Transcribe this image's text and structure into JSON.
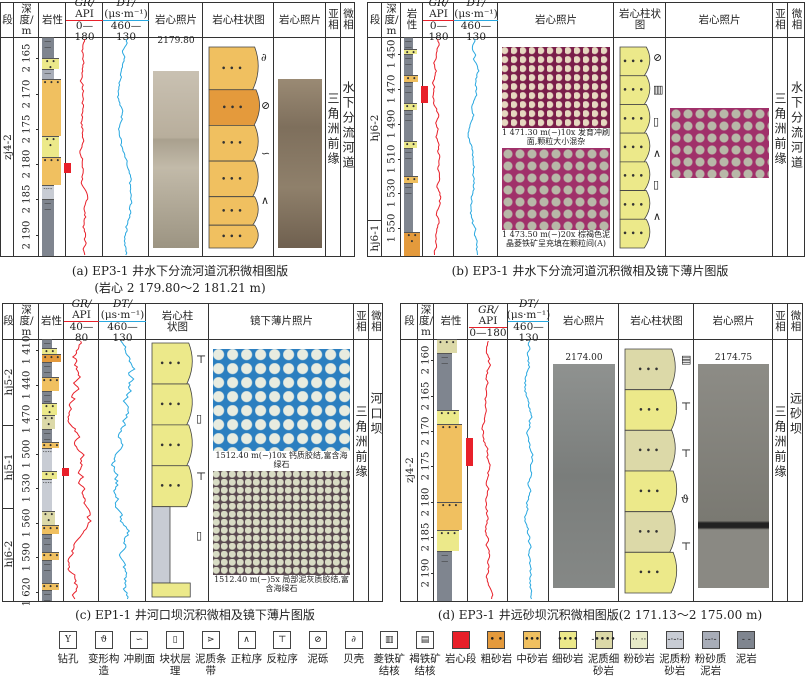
{
  "legend": [
    {
      "label": "钻孔",
      "icon": "boring-icon",
      "glyph": "Y",
      "fill": "#ffffff"
    },
    {
      "label": "变形构造",
      "icon": "deformation-structure-icon",
      "glyph": "ϑ",
      "fill": "#ffffff"
    },
    {
      "label": "冲刷面",
      "icon": "scour-surface-icon",
      "glyph": "∽",
      "fill": "#ffffff"
    },
    {
      "label": "块状层理",
      "icon": "massive-bedding-icon",
      "glyph": "▯",
      "fill": "#ffffff"
    },
    {
      "label": "泥质条带",
      "icon": "mud-band-icon",
      "glyph": "⋗",
      "fill": "#ffffff"
    },
    {
      "label": "正粒序",
      "icon": "normal-grading-icon",
      "glyph": "∧",
      "fill": "#ffffff"
    },
    {
      "label": "反粒序",
      "icon": "reverse-grading-icon",
      "glyph": "⊤",
      "fill": "#ffffff"
    },
    {
      "label": "泥砾",
      "icon": "mud-gravel-icon",
      "glyph": "⊘",
      "fill": "#ffffff"
    },
    {
      "label": "贝壳",
      "icon": "shell-icon",
      "glyph": "∂",
      "fill": "#ffffff"
    },
    {
      "label": "菱铁矿结核",
      "icon": "siderite-nodule-icon",
      "glyph": "▥",
      "fill": "#ffffff"
    },
    {
      "label": "褐铁矿结核",
      "icon": "limonite-nodule-icon",
      "glyph": "▤",
      "fill": "#ffffff"
    },
    {
      "label": "岩心段",
      "icon": "core-section-swatch",
      "glyph": "",
      "fill": "#e8202a"
    },
    {
      "label": "粗砂岩",
      "icon": "coarse-sandstone-swatch",
      "glyph": "• •",
      "fill": "#e49a3c"
    },
    {
      "label": "中砂岩",
      "icon": "medium-sandstone-swatch",
      "glyph": "•••",
      "fill": "#f0c060"
    },
    {
      "label": "细砂岩",
      "icon": "fine-sandstone-swatch",
      "glyph": "••••",
      "fill": "#ece98a"
    },
    {
      "label": "泥质细砂岩",
      "icon": "muddy-fine-sandstone-swatch",
      "glyph": "-••••",
      "fill": "#dcd9a8"
    },
    {
      "label": "粉砂岩",
      "icon": "siltstone-swatch",
      "glyph": "·· ··",
      "fill": "#e8ebc8"
    },
    {
      "label": "泥质粉砂岩",
      "icon": "muddy-siltstone-swatch",
      "glyph": "-·-·-",
      "fill": "#c8ccd4"
    },
    {
      "label": "粉砂质泥岩",
      "icon": "silty-mudstone-swatch",
      "glyph": "--·-",
      "fill": "#a8adb8"
    },
    {
      "label": "泥岩",
      "icon": "mudstone-swatch",
      "glyph": "- -",
      "fill": "#7f858f"
    }
  ],
  "colors": {
    "gr_curve": "#e8202a",
    "dt_curve": "#29a8e0",
    "core_section": "#e8202a"
  },
  "panels": {
    "a": {
      "caption": "(a) EP3-1 井水下分流河道沉积微相图版",
      "caption2": "(岩心 2 179.80～2 181.21 m)",
      "headers": [
        [
          "段"
        ],
        [
          "深",
          "度/",
          "m"
        ],
        [
          "岩性"
        ],
        [
          "GR/",
          "API",
          "0—180"
        ],
        [
          "DT/",
          "(μs·m⁻¹)",
          "460—130"
        ],
        [
          "岩心照片"
        ],
        [
          "岩心柱状图"
        ],
        [
          "岩心照片"
        ],
        [
          "亚",
          "相"
        ],
        [
          "微",
          "相"
        ]
      ],
      "depth_range": [
        2162,
        2193
      ],
      "depth_ticks": [
        "2 165",
        "2 170",
        "2 175",
        "2 180",
        "2 185",
        "2 190"
      ],
      "segments": [
        {
          "label": "zj4-2",
          "top": 2162,
          "bottom": 2193
        }
      ],
      "lithology": [
        [
          2162,
          2165,
          "mud"
        ],
        [
          2165,
          2166.5,
          "fine"
        ],
        [
          2166.5,
          2168,
          "silty_mud"
        ],
        [
          2168,
          2176,
          "medium"
        ],
        [
          2176,
          2179,
          "fine"
        ],
        [
          2179,
          2183,
          "medium"
        ],
        [
          2183,
          2185,
          "muddy_silt"
        ],
        [
          2185,
          2193,
          "mud"
        ]
      ],
      "core_section": [
        2179.8,
        2181.2
      ],
      "column_beds": [
        [
          2179.8,
          2180.1,
          "medium"
        ],
        [
          2180.1,
          2180.35,
          "coarse"
        ],
        [
          2180.35,
          2180.6,
          "medium"
        ],
        [
          2180.6,
          2180.85,
          "medium"
        ],
        [
          2180.85,
          2181.05,
          "medium"
        ],
        [
          2181.05,
          2181.21,
          "medium"
        ]
      ],
      "photo_labels": [
        "2179.80"
      ],
      "subfacies": "三角洲前缘",
      "microfacies": "水下分流河道"
    },
    "b": {
      "caption": "(b) EP3-1 井水下分流河道沉积微相及镜下薄片图版",
      "headers": [
        [
          "段"
        ],
        [
          "深",
          "度/",
          "m"
        ],
        [
          "岩",
          "性"
        ],
        [
          "GR/",
          "API",
          "0—180"
        ],
        [
          "DT/",
          "(μs·m⁻¹)",
          "460—130"
        ],
        [
          "岩心照片"
        ],
        [
          "岩心柱状",
          "图"
        ],
        [
          "岩心照片"
        ],
        [
          "亚",
          "相"
        ],
        [
          "微",
          "相"
        ]
      ],
      "depth_range": [
        1440,
        1566
      ],
      "depth_ticks": [
        "1 450",
        "1 470",
        "1 490",
        "1 510",
        "1 530",
        "1 550"
      ],
      "segments": [
        {
          "label": "hj6-2",
          "top": 1440,
          "bottom": 1545
        },
        {
          "label": "hj6-1",
          "top": 1545,
          "bottom": 1566
        }
      ],
      "lithology": [
        [
          1440,
          1447,
          "mud"
        ],
        [
          1447,
          1450,
          "fine"
        ],
        [
          1450,
          1462,
          "mud"
        ],
        [
          1462,
          1466,
          "medium"
        ],
        [
          1466,
          1478,
          "mud"
        ],
        [
          1478,
          1482,
          "fine"
        ],
        [
          1482,
          1500,
          "mud"
        ],
        [
          1500,
          1504,
          "fine"
        ],
        [
          1504,
          1520,
          "mud"
        ],
        [
          1520,
          1524,
          "medium"
        ],
        [
          1524,
          1552,
          "mud"
        ],
        [
          1552,
          1566,
          "coarse"
        ]
      ],
      "core_section": [
        1468,
        1478
      ],
      "photo_captions": [
        "1 471.30 m(−)10x  发育冲刷面,颗粒大小混杂",
        "1 473.50 m(−)20x  棕褐色泥晶菱铁矿呈充填在颗粒间(A)"
      ],
      "subfacies": "三角洲前缘",
      "microfacies": "水下分流河道"
    },
    "c": {
      "caption": "(c) EP1-1 井河口坝沉积微相及镜下薄片图版",
      "headers": [
        [
          "段"
        ],
        [
          "深",
          "度/",
          "m"
        ],
        [
          "岩性"
        ],
        [
          "GR/",
          "API",
          "40—80"
        ],
        [
          "DT/",
          "(μs·m⁻¹)",
          "460—130"
        ],
        [
          "岩心柱",
          "状图"
        ],
        [
          "镜下薄片照片"
        ],
        [
          "亚",
          "相"
        ],
        [
          "微",
          "相"
        ]
      ],
      "depth_range": [
        1400,
        1628
      ],
      "depth_ticks": [
        "1 410",
        "1 440",
        "1 470",
        "1 500",
        "1 530",
        "1 560",
        "1 590",
        "1 620"
      ],
      "segments": [
        {
          "label": "hj5-2",
          "top": 1400,
          "bottom": 1475
        },
        {
          "label": "hj5-1",
          "top": 1475,
          "bottom": 1547
        },
        {
          "label": "hj6-2",
          "top": 1547,
          "bottom": 1628
        }
      ],
      "lithology": [
        [
          1400,
          1408,
          "mud"
        ],
        [
          1408,
          1413,
          "fine"
        ],
        [
          1413,
          1420,
          "coarse"
        ],
        [
          1420,
          1433,
          "mud"
        ],
        [
          1433,
          1445,
          "medium"
        ],
        [
          1445,
          1456,
          "mud"
        ],
        [
          1456,
          1466,
          "fine"
        ],
        [
          1466,
          1478,
          "muddy_fine"
        ],
        [
          1478,
          1490,
          "mud"
        ],
        [
          1490,
          1495,
          "medium"
        ],
        [
          1495,
          1515,
          "muddy_silt"
        ],
        [
          1515,
          1522,
          "fine"
        ],
        [
          1522,
          1550,
          "muddy_silt"
        ],
        [
          1550,
          1562,
          "muddy_fine"
        ],
        [
          1562,
          1570,
          "medium"
        ],
        [
          1570,
          1585,
          "mud"
        ],
        [
          1585,
          1592,
          "medium"
        ],
        [
          1592,
          1612,
          "mud"
        ],
        [
          1612,
          1618,
          "medium"
        ],
        [
          1618,
          1628,
          "mud"
        ]
      ],
      "core_section": [
        1512,
        1518
      ],
      "photo_captions": [
        "1512.40 m(−)10x  钙质胶结,富含海绿石",
        "1512.40 m(−)5x  局部泥灰质胶结,富含海绿石"
      ],
      "subfacies": "三角洲前缘",
      "microfacies": "河口坝"
    },
    "d": {
      "caption": "(d) EP3-1 井远砂坝沉积微相图版(2 171.13～2 175.00 m)",
      "headers": [
        [
          "段"
        ],
        [
          "深",
          "度/",
          "m"
        ],
        [
          "岩性"
        ],
        [
          "GR/",
          "API",
          "0—180"
        ],
        [
          "DT/",
          "(μs·m⁻¹)",
          "460—130"
        ],
        [
          "岩心照片"
        ],
        [
          "岩心柱状图"
        ],
        [
          "岩心照片"
        ],
        [
          "亚",
          "相"
        ],
        [
          "微",
          "相"
        ]
      ],
      "depth_range": [
        2157,
        2194
      ],
      "depth_ticks": [
        "2 160",
        "2 165",
        "2 170",
        "2 175",
        "2 180",
        "2 185",
        "2 190"
      ],
      "segments": [
        {
          "label": "zj4-2",
          "top": 2157,
          "bottom": 2194
        }
      ],
      "lithology": [
        [
          2157,
          2159,
          "muddy_fine"
        ],
        [
          2159,
          2167,
          "mud"
        ],
        [
          2167,
          2169,
          "fine"
        ],
        [
          2169,
          2180,
          "medium"
        ],
        [
          2180,
          2184,
          "medium"
        ],
        [
          2184,
          2187,
          "fine"
        ],
        [
          2187,
          2194,
          "mud"
        ]
      ],
      "core_section": [
        2171,
        2175
      ],
      "photo_labels": [
        "2174.00",
        "2174.75"
      ],
      "subfacies": "三角洲前缘",
      "microfacies": "远砂坝"
    }
  }
}
